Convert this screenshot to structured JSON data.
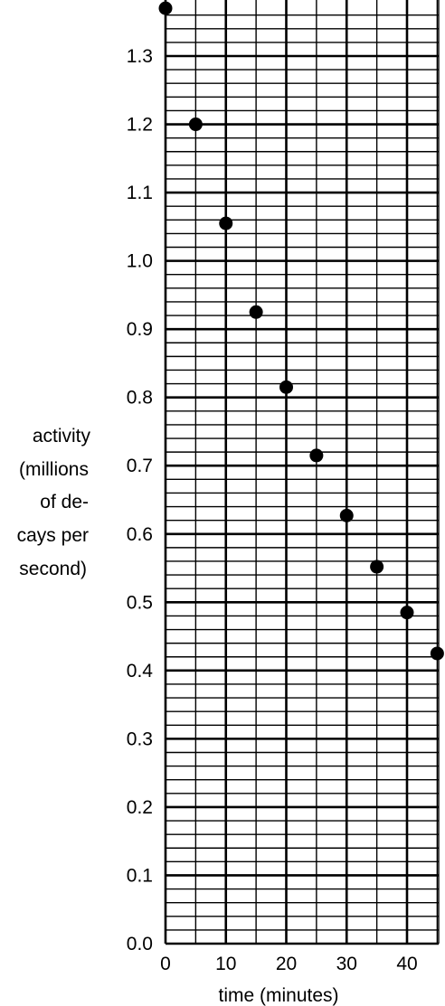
{
  "chart_data": {
    "type": "scatter",
    "xlabel": "time (minutes)",
    "ylabel_lines": [
      "activity",
      "(millions",
      "of de-",
      "cays per",
      "second)"
    ],
    "xlim": [
      0,
      45
    ],
    "ylim": [
      0.0,
      1.37
    ],
    "x_ticks": [
      "0",
      "10",
      "20",
      "30",
      "40"
    ],
    "y_ticks": [
      "0.0",
      "0.1",
      "0.2",
      "0.3",
      "0.4",
      "0.5",
      "0.6",
      "0.7",
      "0.8",
      "0.9",
      "1.0",
      "1.1",
      "1.2",
      "1.3"
    ],
    "grid": true,
    "x": [
      0,
      5,
      10,
      15,
      20,
      25,
      30,
      35,
      40,
      45
    ],
    "values": [
      1.37,
      1.2,
      1.055,
      0.925,
      0.815,
      0.715,
      0.627,
      0.552,
      0.485,
      0.425
    ],
    "marker_color": "#000000"
  }
}
